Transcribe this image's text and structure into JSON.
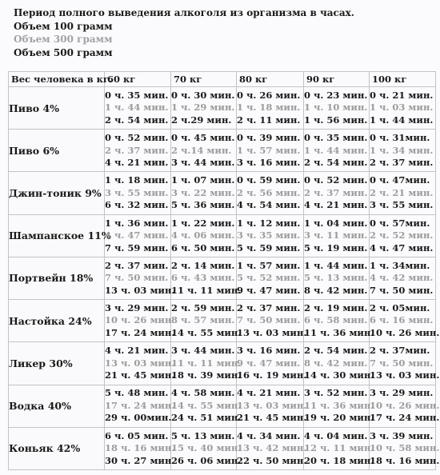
{
  "title": "Период полного выведения алкоголя из организма в часах.",
  "volumes": [
    "Объем 100 грамм",
    "Объем 300 грамм",
    "Объем 500 грамм"
  ],
  "table": {
    "corner": "Вес человека в кг.",
    "weights": [
      "60 кг",
      "70 кг",
      "80 кг",
      "90 кг",
      "100 кг"
    ],
    "rows": [
      {
        "drink": "Пиво 4%",
        "cells": [
          [
            "0 ч. 35 мин.",
            "1 ч. 44 мин.",
            "2 ч. 54 мин."
          ],
          [
            "0 ч. 30 мин.",
            "1 ч. 29 мин.",
            "2 ч.29 мин."
          ],
          [
            "0 ч. 26 мин.",
            "1 ч. 18 мин.",
            "2 ч. 11 мин."
          ],
          [
            "0 ч. 23 мин.",
            "1 ч. 10 мин.",
            "1 ч. 56 мин."
          ],
          [
            "0 ч. 21 мин.",
            "1 ч. 03 мин.",
            "1 ч. 44 мин."
          ]
        ]
      },
      {
        "drink": "Пиво 6%",
        "cells": [
          [
            "0 ч. 52 мин.",
            "2 ч. 37 мин.",
            "4 ч. 21 мин."
          ],
          [
            "0 ч. 45 мин.",
            "2 ч.14 мин.",
            "3 ч. 44 мин."
          ],
          [
            "0 ч. 39 мин.",
            "1 ч. 57 мин.",
            "3 ч. 16 мин."
          ],
          [
            "0 ч. 35 мин.",
            "1 ч. 44 мин.",
            "2 ч. 54 мин."
          ],
          [
            "0 ч. 31мин.",
            "1 ч. 34 мин.",
            "2 ч. 37 мин."
          ]
        ]
      },
      {
        "drink": "Джин-тоник 9%",
        "cells": [
          [
            "1 ч. 18 мин.",
            "3 ч. 55 мин.",
            "6 ч. 32 мин."
          ],
          [
            "1 ч. 07 мин.",
            "3 ч. 22 мин.",
            "5 ч. 36 мин."
          ],
          [
            "0 ч. 59 мин.",
            "2 ч. 56 мин.",
            "4 ч. 54 мин."
          ],
          [
            "0 ч. 52 мин.",
            "2 ч. 37 мин.",
            "4 ч. 21 мин."
          ],
          [
            "0 ч. 47мин.",
            "2 ч. 21 мин.",
            "3 ч. 55 мин."
          ]
        ]
      },
      {
        "drink": "Шампанское 11%",
        "cells": [
          [
            "1 ч. 36 мин.",
            "4 ч. 47 мин.",
            "7 ч. 59 мин."
          ],
          [
            "1 ч. 22 мин.",
            "4 ч. 06 мин.",
            "6 ч. 50 мин."
          ],
          [
            "1 ч. 12 мин.",
            "3 ч. 35 мин.",
            "5 ч. 59 мин."
          ],
          [
            "1 ч. 04 мин.",
            "3 ч. 11 мин.",
            "5 ч. 19 мин."
          ],
          [
            "0 ч. 57мин.",
            "2 ч. 52 мин.",
            "4 ч. 47 мин."
          ]
        ]
      },
      {
        "drink": "Портвейн 18%",
        "cells": [
          [
            "2 ч. 37 мин.",
            "7 ч. 50 мин.",
            "13 ч. 03 мин."
          ],
          [
            "2 ч. 14 мин.",
            "6 ч. 43 мин.",
            "11 ч. 11 мин."
          ],
          [
            "1 ч. 57 мин.",
            "5 ч. 52 мин.",
            "9 ч. 47 мин."
          ],
          [
            "1 ч. 44 мин.",
            "5 ч. 13 мин.",
            "8 ч. 42 мин."
          ],
          [
            "1 ч. 34мин.",
            "4 ч. 42 мин.",
            "7 ч. 50 мин."
          ]
        ]
      },
      {
        "drink": "Настойка 24%",
        "cells": [
          [
            "3 ч. 29 мин.",
            "10 ч. 26 мин.",
            "17 ч. 24 мин."
          ],
          [
            "2 ч. 59 мин.",
            "8 ч. 57 мин.",
            "14 ч. 55 мин."
          ],
          [
            "2 ч. 37 мин.",
            "7 ч. 50 мин.",
            "13 ч. 03 мин."
          ],
          [
            "2 ч. 19 мин.",
            "6 ч. 58 мин.",
            "11 ч. 36 мин."
          ],
          [
            "2 ч. 05мин.",
            "6 ч. 16 мин.",
            "10 ч. 26 мин."
          ]
        ]
      },
      {
        "drink": "Ликер 30%",
        "cells": [
          [
            "4 ч. 21 мин.",
            "13 ч. 03 мин.",
            "21 ч. 45 мин."
          ],
          [
            "3 ч. 44 мин.",
            "11 ч. 11 мин.",
            "18 ч. 39 мин."
          ],
          [
            "3 ч. 16 мин.",
            "9 ч. 47 мин.",
            "16 ч. 19 мин."
          ],
          [
            "2 ч. 54 мин.",
            "8 ч. 42 мин.",
            "14 ч. 30 мин."
          ],
          [
            "2 ч. 37мин.",
            "7 ч. 50 мин.",
            "13 ч. 03 мин."
          ]
        ]
      },
      {
        "drink": "Водка 40%",
        "cells": [
          [
            "5 ч. 48 мин.",
            "17 ч. 24 мин.",
            "29 ч. 00мин."
          ],
          [
            "4 ч. 58 мин.",
            "14 ч. 55 мин.",
            "24 ч. 51 мин."
          ],
          [
            "4 ч. 21 мин.",
            "13 ч. 03 мин.",
            "21 ч. 45 мин."
          ],
          [
            "3 ч. 52 мин.",
            "11 ч. 36 мин.",
            "19 ч. 20 мин."
          ],
          [
            "3 ч. 29 мин.",
            "10 ч. 26 мин.",
            "17 ч. 24 мин."
          ]
        ]
      },
      {
        "drink": "Коньяк 42%",
        "cells": [
          [
            "6 ч. 05 мин.",
            "18 ч. 16 мин.",
            "30 ч. 27 мин."
          ],
          [
            "5 ч. 13 мин.",
            "15 ч. 40 мин.",
            "26 ч. 06 мин."
          ],
          [
            "4 ч. 34 мин.",
            "13 ч. 42 мин.",
            "22 ч. 50 мин."
          ],
          [
            "4 ч. 04 мин.",
            "12 ч. 11 мин.",
            "20 ч. 18 мин."
          ],
          [
            "3 ч. 39 мин.",
            "10 ч. 58 мин.",
            "18 ч. 16 мин."
          ]
        ]
      }
    ]
  },
  "colors": {
    "volume_100": "#1a1a1a",
    "volume_300": "#9c9c9c",
    "volume_500": "#1a1a1a",
    "grid": "#c2c2c8"
  }
}
